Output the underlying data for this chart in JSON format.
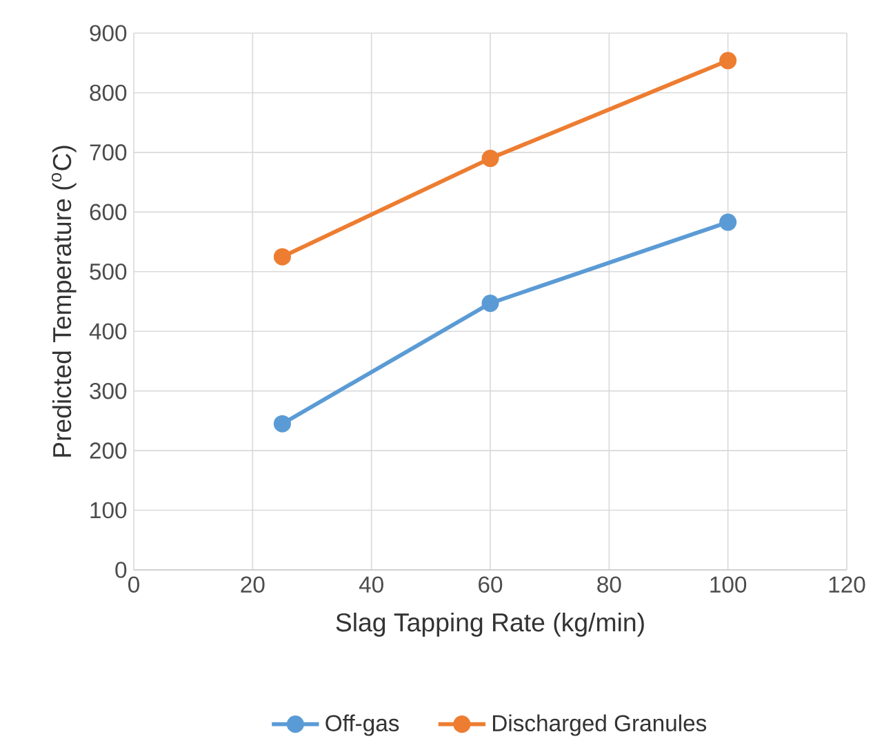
{
  "chart_data": {
    "type": "line",
    "xlabel": "Slag Tapping Rate (kg/min)",
    "ylabel": "Predicted Temperature ($^{o}$C)",
    "x": [
      25,
      60,
      100
    ],
    "series": [
      {
        "name": "Off-gas",
        "color": "#5b9bd5",
        "values": [
          245,
          447,
          583
        ]
      },
      {
        "name": "Discharged Granules",
        "color": "#ed7d31",
        "values": [
          525,
          690,
          854
        ]
      }
    ],
    "xlim": [
      0,
      120
    ],
    "xticks": [
      0,
      20,
      40,
      60,
      80,
      100,
      120
    ],
    "ylim": [
      0,
      900
    ],
    "yticks": [
      0,
      100,
      200,
      300,
      400,
      500,
      600,
      700,
      800,
      900
    ],
    "grid": true,
    "legend": "bottom",
    "marker": "circle",
    "line_style": "solid"
  }
}
